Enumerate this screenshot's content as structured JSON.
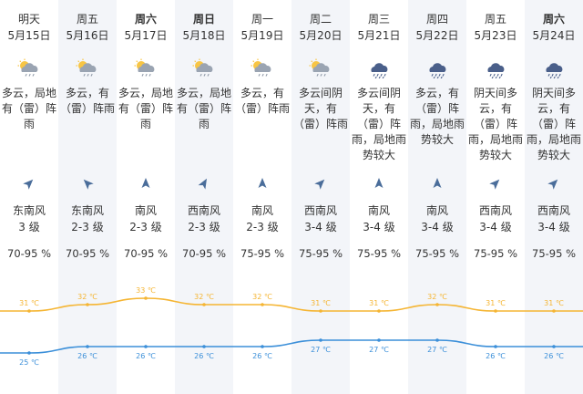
{
  "days": [
    {
      "weekday": "明天",
      "bold": false,
      "date": "5月15日",
      "icon": "partly-cloudy-rain-icon",
      "desc": [
        "多云，局地",
        "有（雷）阵",
        "雨"
      ],
      "wind_dir_deg": 45,
      "wind": "东南风",
      "level": "3 级",
      "humidity": "70-95 %",
      "high": "31 ℃",
      "low": "25 ℃",
      "shade": false
    },
    {
      "weekday": "周五",
      "bold": false,
      "date": "5月16日",
      "icon": "cloudy-rain-icon",
      "desc": [
        "多云，有",
        "（雷）阵雨"
      ],
      "wind_dir_deg": -45,
      "wind": "东南风",
      "level": "2-3 级",
      "humidity": "70-95 %",
      "high": "32 ℃",
      "low": "26 ℃",
      "shade": true
    },
    {
      "weekday": "周六",
      "bold": true,
      "date": "5月17日",
      "icon": "cloudy-rain-icon",
      "desc": [
        "多云，局地",
        "有（雷）阵",
        "雨"
      ],
      "wind_dir_deg": 0,
      "wind": "南风",
      "level": "2-3 级",
      "humidity": "70-95 %",
      "high": "33 ℃",
      "low": "26 ℃",
      "shade": false
    },
    {
      "weekday": "周日",
      "bold": true,
      "date": "5月18日",
      "icon": "partly-cloudy-rain-icon",
      "desc": [
        "多云，局地",
        "有（雷）阵",
        "雨"
      ],
      "wind_dir_deg": 30,
      "wind": "西南风",
      "level": "2-3 级",
      "humidity": "70-95 %",
      "high": "32 ℃",
      "low": "26 ℃",
      "shade": true
    },
    {
      "weekday": "周一",
      "bold": false,
      "date": "5月19日",
      "icon": "cloudy-rain-icon",
      "desc": [
        "多云，有",
        "（雷）阵雨"
      ],
      "wind_dir_deg": 0,
      "wind": "南风",
      "level": "2-3 级",
      "humidity": "75-95 %",
      "high": "32 ℃",
      "low": "26 ℃",
      "shade": false
    },
    {
      "weekday": "周二",
      "bold": false,
      "date": "5月20日",
      "icon": "cloudy-rain-icon",
      "desc": [
        "多云间阴",
        "天，有",
        "（雷）阵雨"
      ],
      "wind_dir_deg": 45,
      "wind": "西南风",
      "level": "3-4 级",
      "humidity": "75-95 %",
      "high": "31 ℃",
      "low": "27 ℃",
      "shade": true
    },
    {
      "weekday": "周三",
      "bold": false,
      "date": "5月21日",
      "icon": "heavy-rain-icon",
      "desc": [
        "多云间阴",
        "天，有",
        "（雷）阵",
        "雨，局地雨",
        "势较大"
      ],
      "wind_dir_deg": 0,
      "wind": "南风",
      "level": "3-4 级",
      "humidity": "75-95 %",
      "high": "31 ℃",
      "low": "27 ℃",
      "shade": false
    },
    {
      "weekday": "周四",
      "bold": false,
      "date": "5月22日",
      "icon": "heavy-rain-icon",
      "desc": [
        "多云，有",
        "（雷）阵",
        "雨，局地雨",
        "势较大"
      ],
      "wind_dir_deg": 0,
      "wind": "南风",
      "level": "3-4 级",
      "humidity": "75-95 %",
      "high": "32 ℃",
      "low": "27 ℃",
      "shade": true
    },
    {
      "weekday": "周五",
      "bold": false,
      "date": "5月23日",
      "icon": "heavy-rain-icon",
      "desc": [
        "阴天间多",
        "云，有",
        "（雷）阵",
        "雨，局地雨",
        "势较大"
      ],
      "wind_dir_deg": 45,
      "wind": "西南风",
      "level": "3-4 级",
      "humidity": "75-95 %",
      "high": "31 ℃",
      "low": "26 ℃",
      "shade": false
    },
    {
      "weekday": "周六",
      "bold": true,
      "date": "5月24日",
      "icon": "heavy-rain-icon",
      "desc": [
        "阴天间多",
        "云，有",
        "（雷）阵",
        "雨，局地雨",
        "势较大"
      ],
      "wind_dir_deg": 45,
      "wind": "西南风",
      "level": "3-4 级",
      "humidity": "75-95 %",
      "high": "31 ℃",
      "low": "26 ℃",
      "shade": true
    }
  ],
  "colors": {
    "high_line": "#f5b533",
    "low_line": "#3b8fd9",
    "shade": "#f3f5f9",
    "arrow": "#4a6d9a"
  }
}
